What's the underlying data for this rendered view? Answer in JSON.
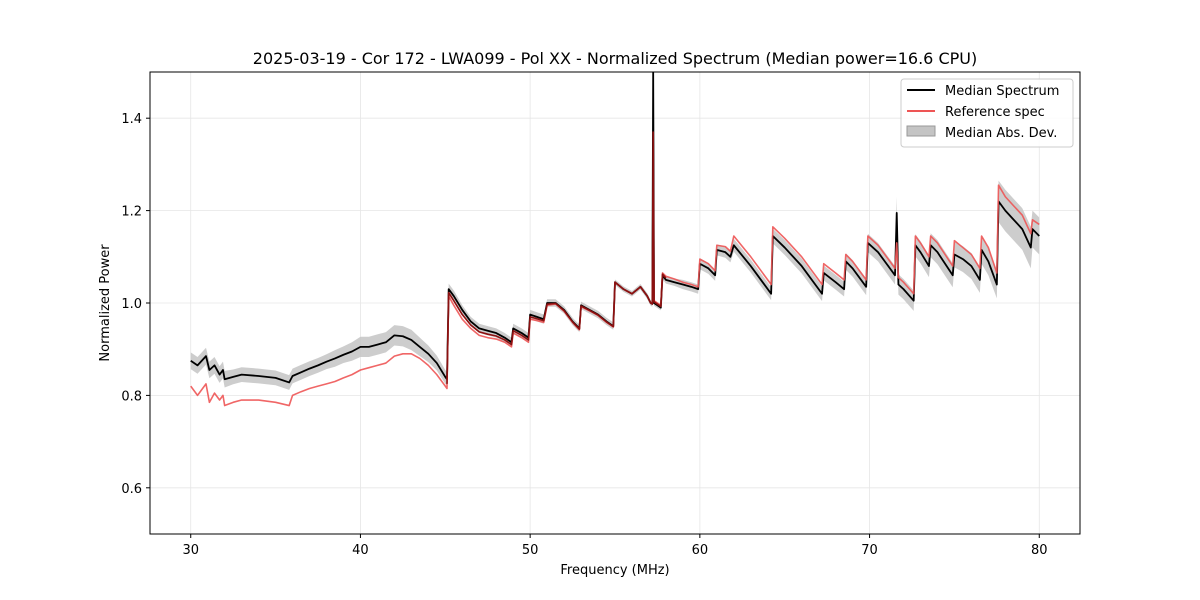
{
  "chart_data": {
    "type": "line",
    "title": "2025-03-19 - Cor 172 - LWA099 - Pol XX - Normalized Spectrum (Median power=16.6 CPU)",
    "xlabel": "Frequency (MHz)",
    "ylabel": "Normalized Power",
    "xlim": [
      27.6,
      82.4
    ],
    "ylim": [
      0.5,
      1.5
    ],
    "xticks": [
      30,
      40,
      50,
      60,
      70,
      80
    ],
    "yticks": [
      0.6,
      0.8,
      1.0,
      1.2,
      1.4
    ],
    "xtick_labels": [
      "30",
      "40",
      "50",
      "60",
      "70",
      "80"
    ],
    "ytick_labels": [
      "0.6",
      "0.8",
      "1.0",
      "1.2",
      "1.4"
    ],
    "grid": true,
    "legend_position": "top-right",
    "legend": [
      "Median Spectrum",
      "Reference spec",
      "Median Abs. Dev."
    ],
    "colors": {
      "median": "#000000",
      "reference": "#ee5555",
      "mad": "#c4c4c4",
      "overlap": "#8b1010"
    },
    "x": [
      30.0,
      30.4,
      30.9,
      31.1,
      31.4,
      31.7,
      31.9,
      32.0,
      32.5,
      33.0,
      34.0,
      35.0,
      35.8,
      36.0,
      36.5,
      37.0,
      37.5,
      38.0,
      38.5,
      39.0,
      39.5,
      40.0,
      40.5,
      41.0,
      41.5,
      42.0,
      42.5,
      43.0,
      43.5,
      44.0,
      44.5,
      45.0,
      45.1,
      45.2,
      45.5,
      46.0,
      46.5,
      47.0,
      47.5,
      48.0,
      48.5,
      48.9,
      49.0,
      49.5,
      49.9,
      50.0,
      50.4,
      50.8,
      51.0,
      51.5,
      52.0,
      52.5,
      52.9,
      53.0,
      53.5,
      54.0,
      54.5,
      54.9,
      55.0,
      55.5,
      56.0,
      56.5,
      56.9,
      57.1,
      57.2,
      57.25,
      57.3,
      57.5,
      57.7,
      57.8,
      58.0,
      58.5,
      59.0,
      59.5,
      59.9,
      60.0,
      60.5,
      60.9,
      61.0,
      61.5,
      61.8,
      62.0,
      63.0,
      64.2,
      64.3,
      65.0,
      66.0,
      67.2,
      67.3,
      68.0,
      68.5,
      68.6,
      69.0,
      69.8,
      69.9,
      70.5,
      71.0,
      71.5,
      71.6,
      71.7,
      72.0,
      72.6,
      72.7,
      73.0,
      73.5,
      73.6,
      74.0,
      74.9,
      75.0,
      75.5,
      76.0,
      76.5,
      76.6,
      77.0,
      77.5,
      77.6,
      78.0,
      78.5,
      79.0,
      79.5,
      79.6,
      80.0
    ],
    "series": [
      {
        "name": "Median Spectrum",
        "values": [
          0.875,
          0.865,
          0.885,
          0.855,
          0.865,
          0.845,
          0.855,
          0.835,
          0.84,
          0.845,
          0.842,
          0.838,
          0.828,
          0.842,
          0.85,
          0.858,
          0.865,
          0.873,
          0.88,
          0.888,
          0.895,
          0.905,
          0.905,
          0.91,
          0.915,
          0.93,
          0.928,
          0.92,
          0.905,
          0.89,
          0.87,
          0.84,
          0.835,
          1.03,
          1.015,
          0.985,
          0.96,
          0.945,
          0.94,
          0.935,
          0.925,
          0.915,
          0.945,
          0.935,
          0.925,
          0.975,
          0.97,
          0.965,
          1.0,
          1.0,
          0.985,
          0.96,
          0.945,
          0.995,
          0.985,
          0.975,
          0.96,
          0.95,
          1.045,
          1.03,
          1.02,
          1.035,
          1.015,
          1.0,
          0.998,
          1.5,
          1.0,
          0.995,
          0.99,
          1.06,
          1.05,
          1.045,
          1.04,
          1.035,
          1.03,
          1.085,
          1.075,
          1.06,
          1.115,
          1.11,
          1.1,
          1.125,
          1.08,
          1.02,
          1.145,
          1.12,
          1.08,
          1.02,
          1.065,
          1.045,
          1.03,
          1.09,
          1.075,
          1.035,
          1.13,
          1.11,
          1.085,
          1.06,
          1.195,
          1.04,
          1.03,
          1.005,
          1.125,
          1.11,
          1.08,
          1.125,
          1.11,
          1.06,
          1.105,
          1.095,
          1.08,
          1.05,
          1.115,
          1.09,
          1.04,
          1.22,
          1.2,
          1.18,
          1.16,
          1.12,
          1.16,
          1.145
        ]
      },
      {
        "name": "Reference spec",
        "values": [
          0.82,
          0.8,
          0.825,
          0.785,
          0.805,
          0.79,
          0.8,
          0.778,
          0.785,
          0.79,
          0.79,
          0.785,
          0.778,
          0.8,
          0.808,
          0.815,
          0.82,
          0.825,
          0.83,
          0.838,
          0.845,
          0.855,
          0.86,
          0.865,
          0.87,
          0.885,
          0.89,
          0.89,
          0.88,
          0.865,
          0.845,
          0.82,
          0.815,
          1.015,
          0.995,
          0.965,
          0.945,
          0.93,
          0.925,
          0.922,
          0.915,
          0.905,
          0.935,
          0.925,
          0.915,
          0.965,
          0.962,
          0.958,
          0.995,
          0.998,
          0.982,
          0.958,
          0.942,
          0.992,
          0.983,
          0.973,
          0.958,
          0.948,
          1.045,
          1.03,
          1.02,
          1.035,
          1.015,
          1.0,
          0.998,
          1.24,
          1.005,
          1.0,
          0.995,
          1.065,
          1.058,
          1.052,
          1.045,
          1.04,
          1.035,
          1.095,
          1.085,
          1.07,
          1.125,
          1.122,
          1.112,
          1.145,
          1.1,
          1.04,
          1.165,
          1.14,
          1.1,
          1.04,
          1.085,
          1.065,
          1.05,
          1.105,
          1.09,
          1.05,
          1.145,
          1.125,
          1.1,
          1.075,
          1.13,
          1.055,
          1.045,
          1.02,
          1.145,
          1.13,
          1.1,
          1.145,
          1.13,
          1.08,
          1.135,
          1.12,
          1.105,
          1.075,
          1.145,
          1.12,
          1.065,
          1.255,
          1.23,
          1.21,
          1.19,
          1.15,
          1.18,
          1.17
        ]
      }
    ],
    "mad_band": {
      "name": "Median Abs. Dev.",
      "half_width": [
        0.018,
        0.018,
        0.018,
        0.018,
        0.018,
        0.018,
        0.018,
        0.018,
        0.016,
        0.016,
        0.016,
        0.016,
        0.016,
        0.016,
        0.016,
        0.016,
        0.016,
        0.016,
        0.018,
        0.018,
        0.02,
        0.022,
        0.022,
        0.022,
        0.022,
        0.022,
        0.022,
        0.022,
        0.02,
        0.018,
        0.016,
        0.015,
        0.015,
        0.012,
        0.012,
        0.01,
        0.01,
        0.01,
        0.01,
        0.01,
        0.01,
        0.01,
        0.01,
        0.01,
        0.01,
        0.01,
        0.01,
        0.01,
        0.008,
        0.008,
        0.008,
        0.008,
        0.008,
        0.008,
        0.008,
        0.008,
        0.008,
        0.008,
        0.006,
        0.006,
        0.006,
        0.006,
        0.006,
        0.006,
        0.006,
        0.006,
        0.006,
        0.006,
        0.006,
        0.008,
        0.008,
        0.008,
        0.01,
        0.01,
        0.01,
        0.012,
        0.012,
        0.012,
        0.012,
        0.012,
        0.012,
        0.014,
        0.014,
        0.014,
        0.016,
        0.016,
        0.016,
        0.016,
        0.016,
        0.016,
        0.016,
        0.018,
        0.018,
        0.018,
        0.02,
        0.02,
        0.02,
        0.02,
        0.035,
        0.022,
        0.022,
        0.022,
        0.024,
        0.024,
        0.024,
        0.026,
        0.026,
        0.026,
        0.028,
        0.028,
        0.028,
        0.028,
        0.03,
        0.03,
        0.03,
        0.045,
        0.045,
        0.045,
        0.045,
        0.045,
        0.04,
        0.04
      ]
    }
  }
}
